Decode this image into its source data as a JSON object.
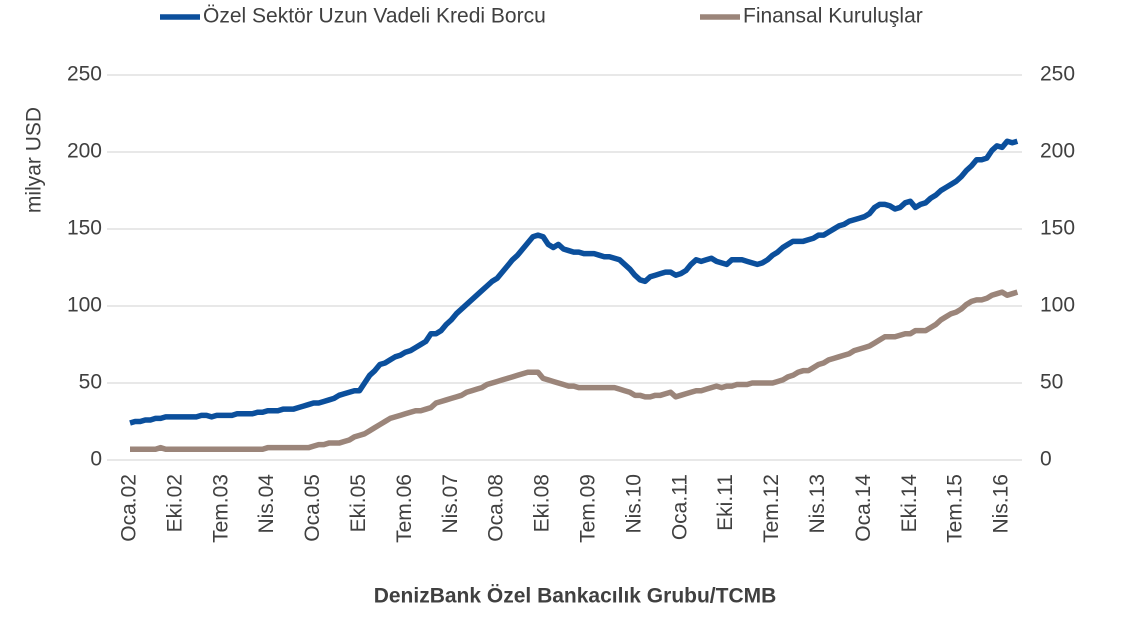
{
  "chart_data": {
    "type": "line",
    "ylabel": "milyar USD",
    "source": "DenizBank Özel Bankacılık Grubu/TCMB",
    "ylim": [
      0,
      250
    ],
    "yticks": [
      0,
      50,
      100,
      150,
      200,
      250
    ],
    "y2lim": [
      0,
      250
    ],
    "y2ticks": [
      0,
      50,
      100,
      150,
      200,
      250
    ],
    "grid": true,
    "legend": "top",
    "categories": [
      "Oca.02",
      null,
      null,
      null,
      null,
      null,
      null,
      null,
      null,
      "Eki.02",
      null,
      null,
      null,
      null,
      null,
      null,
      null,
      null,
      "Tem.03",
      null,
      null,
      null,
      null,
      null,
      null,
      null,
      null,
      "Nis.04",
      null,
      null,
      null,
      null,
      null,
      null,
      null,
      null,
      "Oca.05",
      null,
      null,
      null,
      null,
      null,
      null,
      null,
      null,
      "Eki.05",
      null,
      null,
      null,
      null,
      null,
      null,
      null,
      null,
      "Tem.06",
      null,
      null,
      null,
      null,
      null,
      null,
      null,
      null,
      "Nis.07",
      null,
      null,
      null,
      null,
      null,
      null,
      null,
      null,
      "Oca.08",
      null,
      null,
      null,
      null,
      null,
      null,
      null,
      null,
      "Eki.08",
      null,
      null,
      null,
      null,
      null,
      null,
      null,
      null,
      "Tem.09",
      null,
      null,
      null,
      null,
      null,
      null,
      null,
      null,
      "Nis.10",
      null,
      null,
      null,
      null,
      null,
      null,
      null,
      null,
      "Oca.11",
      null,
      null,
      null,
      null,
      null,
      null,
      null,
      null,
      "Eki.11",
      null,
      null,
      null,
      null,
      null,
      null,
      null,
      null,
      "Tem.12",
      null,
      null,
      null,
      null,
      null,
      null,
      null,
      null,
      "Nis.13",
      null,
      null,
      null,
      null,
      null,
      null,
      null,
      null,
      "Oca.14",
      null,
      null,
      null,
      null,
      null,
      null,
      null,
      null,
      "Eki.14",
      null,
      null,
      null,
      null,
      null,
      null,
      null,
      null,
      "Tem.15",
      null,
      null,
      null,
      null,
      null,
      null,
      null,
      null,
      "Nis.16",
      null,
      null,
      null
    ],
    "series": [
      {
        "name": "Özel Sektör Uzun Vadeli Kredi Borcu",
        "color": "#0b4f9c",
        "values": [
          24,
          25,
          25,
          26,
          26,
          27,
          27,
          28,
          28,
          28,
          28,
          28,
          28,
          28,
          29,
          29,
          28,
          29,
          29,
          29,
          29,
          30,
          30,
          30,
          30,
          31,
          31,
          32,
          32,
          32,
          33,
          33,
          33,
          34,
          35,
          36,
          37,
          37,
          38,
          39,
          40,
          42,
          43,
          44,
          45,
          45,
          50,
          55,
          58,
          62,
          63,
          65,
          67,
          68,
          70,
          71,
          73,
          75,
          77,
          82,
          82,
          84,
          88,
          91,
          95,
          98,
          101,
          104,
          107,
          110,
          113,
          116,
          118,
          122,
          126,
          130,
          133,
          137,
          141,
          145,
          146,
          145,
          140,
          138,
          140,
          137,
          136,
          135,
          135,
          134,
          134,
          134,
          133,
          132,
          132,
          131,
          130,
          127,
          124,
          120,
          117,
          116,
          119,
          120,
          121,
          122,
          122,
          120,
          121,
          123,
          127,
          130,
          129,
          130,
          131,
          129,
          128,
          127,
          130,
          130,
          130,
          129,
          128,
          127,
          128,
          130,
          133,
          135,
          138,
          140,
          142,
          142,
          142,
          143,
          144,
          146,
          146,
          148,
          150,
          152,
          153,
          155,
          156,
          157,
          158,
          160,
          164,
          166,
          166,
          165,
          163,
          164,
          167,
          168,
          164,
          166,
          167,
          170,
          172,
          175,
          177,
          179,
          181,
          184,
          188,
          191,
          195,
          195,
          196,
          201,
          204,
          203,
          207,
          206,
          207
        ]
      },
      {
        "name": "Finansal Kuruluşlar",
        "color": "#9b857a",
        "values": [
          7,
          7,
          7,
          7,
          7,
          7,
          8,
          7,
          7,
          7,
          7,
          7,
          7,
          7,
          7,
          7,
          7,
          7,
          7,
          7,
          7,
          7,
          7,
          7,
          7,
          7,
          7,
          8,
          8,
          8,
          8,
          8,
          8,
          8,
          8,
          8,
          9,
          10,
          10,
          11,
          11,
          11,
          12,
          13,
          15,
          16,
          17,
          19,
          21,
          23,
          25,
          27,
          28,
          29,
          30,
          31,
          32,
          32,
          33,
          34,
          37,
          38,
          39,
          40,
          41,
          42,
          44,
          45,
          46,
          47,
          49,
          50,
          51,
          52,
          53,
          54,
          55,
          56,
          57,
          57,
          57,
          53,
          52,
          51,
          50,
          49,
          48,
          48,
          47,
          47,
          47,
          47,
          47,
          47,
          47,
          47,
          46,
          45,
          44,
          42,
          42,
          41,
          41,
          42,
          42,
          43,
          44,
          41,
          42,
          43,
          44,
          45,
          45,
          46,
          47,
          48,
          47,
          48,
          48,
          49,
          49,
          49,
          50,
          50,
          50,
          50,
          50,
          51,
          52,
          54,
          55,
          57,
          58,
          58,
          60,
          62,
          63,
          65,
          66,
          67,
          68,
          69,
          71,
          72,
          73,
          74,
          76,
          78,
          80,
          80,
          80,
          81,
          82,
          82,
          84,
          84,
          84,
          86,
          88,
          91,
          93,
          95,
          96,
          98,
          101,
          103,
          104,
          104,
          105,
          107,
          108,
          109,
          107,
          108,
          109
        ]
      }
    ]
  }
}
